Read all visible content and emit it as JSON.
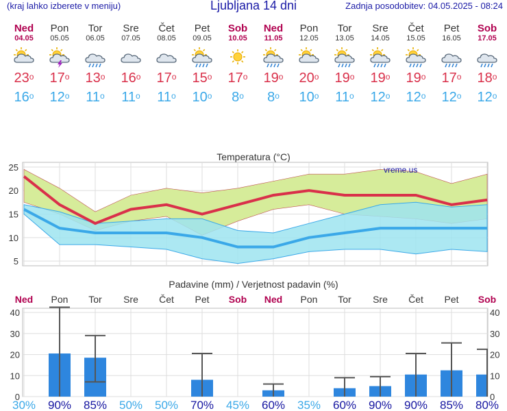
{
  "header": {
    "menu_hint": "(kraj lahko izberete v meniju)",
    "title": "Ljubljana 14 dni",
    "updated": "Zadnja posodobitev: 04.05.2025 - 08:24"
  },
  "days": [
    {
      "name": "Ned",
      "date": "04.05",
      "weekend": true,
      "icon": "sun-cloud",
      "tmax": "23",
      "tmin": "16"
    },
    {
      "name": "Pon",
      "date": "05.05",
      "weekend": false,
      "icon": "sun-lightning",
      "tmax": "17",
      "tmin": "12"
    },
    {
      "name": "Tor",
      "date": "06.05",
      "weekend": false,
      "icon": "cloud-rain",
      "tmax": "13",
      "tmin": "11"
    },
    {
      "name": "Sre",
      "date": "07.05",
      "weekend": false,
      "icon": "cloud",
      "tmax": "16",
      "tmin": "11"
    },
    {
      "name": "Čet",
      "date": "08.05",
      "weekend": false,
      "icon": "cloud",
      "tmax": "17",
      "tmin": "11"
    },
    {
      "name": "Pet",
      "date": "09.05",
      "weekend": false,
      "icon": "sun-rain",
      "tmax": "15",
      "tmin": "10"
    },
    {
      "name": "Sob",
      "date": "10.05",
      "weekend": true,
      "icon": "sun",
      "tmax": "17",
      "tmin": "8"
    },
    {
      "name": "Ned",
      "date": "11.05",
      "weekend": true,
      "icon": "sun-rain",
      "tmax": "19",
      "tmin": "8"
    },
    {
      "name": "Pon",
      "date": "12.05",
      "weekend": false,
      "icon": "sun-cloud",
      "tmax": "20",
      "tmin": "10"
    },
    {
      "name": "Tor",
      "date": "13.05",
      "weekend": false,
      "icon": "sun-rain",
      "tmax": "19",
      "tmin": "11"
    },
    {
      "name": "Sre",
      "date": "14.05",
      "weekend": false,
      "icon": "sun-rain",
      "tmax": "19",
      "tmin": "12"
    },
    {
      "name": "Čet",
      "date": "15.05",
      "weekend": false,
      "icon": "sun-rain",
      "tmax": "19",
      "tmin": "12"
    },
    {
      "name": "Pet",
      "date": "16.05",
      "weekend": false,
      "icon": "cloud-rain",
      "tmax": "17",
      "tmin": "12"
    },
    {
      "name": "Sob",
      "date": "17.05",
      "weekend": true,
      "icon": "cloud-rain",
      "tmax": "18",
      "tmin": "12"
    }
  ],
  "colors": {
    "weekend": "#b0004f",
    "max": "#d9304a",
    "min": "#3aa8e8",
    "max_band": "#d6ec9a",
    "min_band": "#9ee4f0",
    "overlap": "#88cc88",
    "precip": "#2e86de",
    "prob_high": "#1515a0",
    "prob_low": "#3aa8e8"
  },
  "chart_data": [
    {
      "type": "area",
      "title": "Temperatura (°C)",
      "watermark": "vreme.us",
      "ylim": [
        4,
        26
      ],
      "yticks": [
        5,
        10,
        15,
        20,
        25
      ],
      "grid": true,
      "x": [
        "Ned",
        "Pon",
        "Tor",
        "Sre",
        "Čet",
        "Pet",
        "Sob",
        "Ned",
        "Pon",
        "Tor",
        "Sre",
        "Čet",
        "Pet",
        "Sob"
      ],
      "series": [
        {
          "name": "max",
          "values": [
            23,
            17,
            13,
            16,
            17,
            15,
            17,
            19,
            20,
            19,
            19,
            19,
            17,
            18
          ]
        },
        {
          "name": "max_upper",
          "values": [
            24.5,
            20.5,
            15.5,
            19,
            20.5,
            19.5,
            20.5,
            22,
            23.5,
            23.5,
            24.5,
            24,
            21.5,
            23.5
          ]
        },
        {
          "name": "max_lower",
          "values": [
            17.5,
            15,
            11.5,
            13.5,
            14.5,
            10.5,
            13.5,
            16,
            17,
            15,
            14.5,
            14,
            13,
            14
          ]
        },
        {
          "name": "min",
          "values": [
            16,
            12,
            11,
            11,
            11,
            10,
            8,
            8,
            10,
            11,
            12,
            12,
            12,
            12
          ]
        },
        {
          "name": "min_upper",
          "values": [
            17,
            15.5,
            13,
            13.5,
            14,
            14,
            11.5,
            11,
            13,
            15,
            17,
            17.5,
            16.5,
            17
          ]
        },
        {
          "name": "min_lower",
          "values": [
            15,
            8.5,
            8.5,
            8,
            7.5,
            5.5,
            4.5,
            5.5,
            7,
            7.5,
            7.5,
            6.5,
            7.5,
            7
          ]
        }
      ]
    },
    {
      "type": "bar",
      "title": "Padavine (mm) / Verjetnost padavin (%)",
      "ylim": [
        0,
        42
      ],
      "yticks": [
        0,
        10,
        20,
        30,
        40
      ],
      "grid": true,
      "x": [
        "Ned",
        "Pon",
        "Tor",
        "Sre",
        "Čet",
        "Pet",
        "Sob",
        "Ned",
        "Pon",
        "Tor",
        "Sre",
        "Čet",
        "Pet",
        "Sob"
      ],
      "values": [
        0,
        20.5,
        18.5,
        0,
        0,
        8,
        0,
        3,
        0,
        4,
        5,
        10.5,
        12.5,
        10.5
      ],
      "err_low": [
        null,
        0,
        7,
        null,
        null,
        0,
        null,
        0,
        null,
        0,
        0,
        0,
        0,
        0
      ],
      "err_high": [
        null,
        42.5,
        29,
        null,
        null,
        20.5,
        null,
        6,
        null,
        9,
        9.5,
        20.5,
        25.5,
        22.5
      ],
      "probability": [
        "30%",
        "90%",
        "85%",
        "50%",
        "50%",
        "70%",
        "45%",
        "60%",
        "35%",
        "60%",
        "90%",
        "90%",
        "85%",
        "80%"
      ]
    }
  ]
}
